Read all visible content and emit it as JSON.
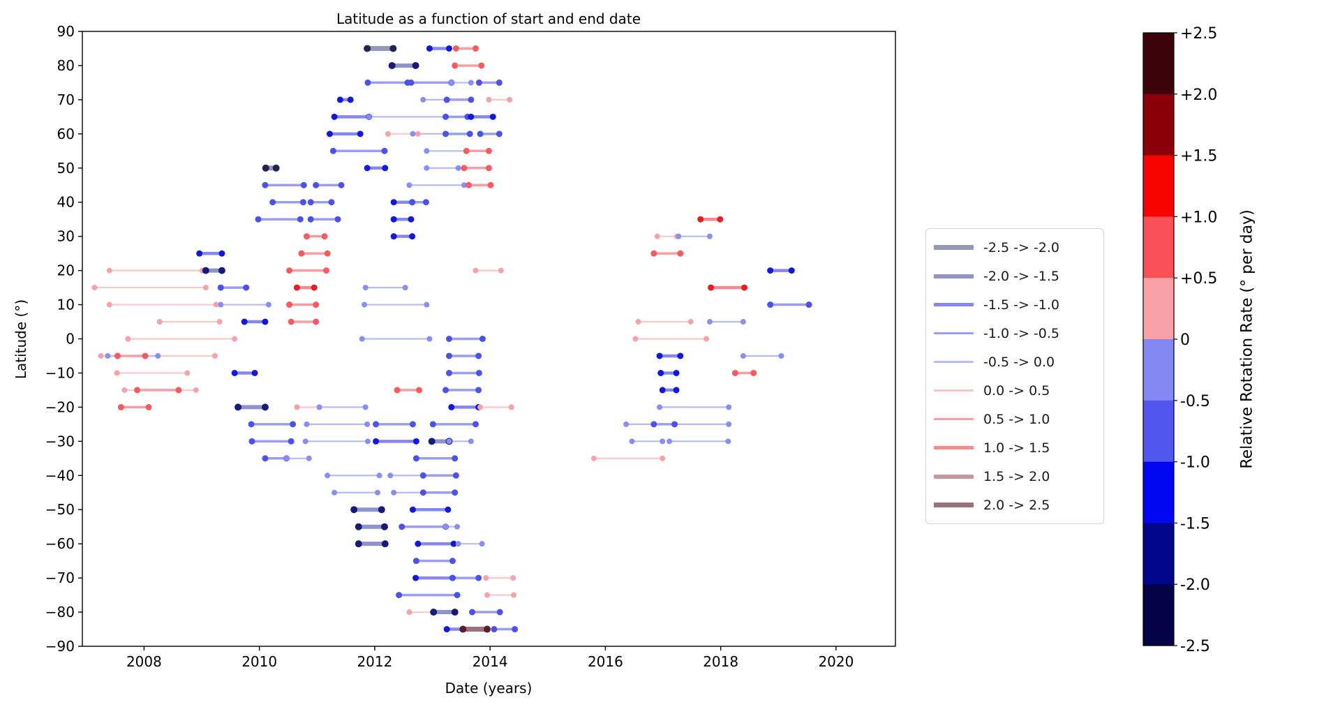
{
  "title": "Latitude as a function of start and end date",
  "xlabel": "Date (years)",
  "ylabel": "Latitude (°)",
  "colorbar": {
    "label": "Relative Rotation Rate (° per day)",
    "tick_labels": [
      "+2.5",
      "+2.0",
      "+1.5",
      "+1.0",
      "+0.5",
      "0",
      "-0.5",
      "-1.0",
      "-1.5",
      "-2.0",
      "-2.5"
    ],
    "colors_top_to_bottom": [
      "#3f040b",
      "#8b0009",
      "#f80400",
      "#f85056",
      "#f9a1a7",
      "#8389f2",
      "#5056ee",
      "#0107f0",
      "#02068c",
      "#030345"
    ]
  },
  "legend": {
    "entries": [
      "-2.5 -> -2.0",
      "-2.0 -> -1.5",
      "-1.5 -> -1.0",
      "-1.0 -> -0.5",
      "-0.5 -> 0.0",
      "0.0 -> 0.5",
      "0.5 -> 1.0",
      "1.0 -> 1.5",
      "1.5 -> 2.0",
      "2.0 -> 2.5"
    ]
  },
  "chart_data": {
    "type": "line",
    "title": "Latitude as a function of start and end date",
    "xlabel": "Date (years)",
    "ylabel": "Latitude (°)",
    "xlim": [
      2006.93,
      2021.03
    ],
    "ylim": [
      -90,
      90
    ],
    "x_ticks": [
      2008,
      2010,
      2012,
      2014,
      2016,
      2018,
      2020
    ],
    "x_tick_labels": [
      "2008",
      "2010",
      "2012",
      "2014",
      "2016",
      "2018",
      "2020"
    ],
    "y_ticks": [
      90,
      80,
      70,
      60,
      50,
      40,
      30,
      20,
      10,
      0,
      -10,
      -20,
      -30,
      -40,
      -50,
      -60,
      -70,
      -80,
      -90
    ],
    "y_tick_labels": [
      "90",
      "80",
      "70",
      "60",
      "50",
      "40",
      "30",
      "20",
      "10",
      "0",
      "−10",
      "−20",
      "−30",
      "−40",
      "−50",
      "−60",
      "−70",
      "−80",
      "−90"
    ],
    "grid": false,
    "legend_position": "outside-right",
    "bins": [
      {
        "label": "-2.5 -> -2.0",
        "range": [
          -2.5,
          -2.0
        ],
        "line": "#9597b8",
        "dot": "#23234f",
        "width": 7,
        "dot_r": 5
      },
      {
        "label": "-2.0 -> -1.5",
        "range": [
          -2.0,
          -1.5
        ],
        "line": "#8f92cc",
        "dot": "#151b78",
        "width": 6,
        "dot_r": 5
      },
      {
        "label": "-1.5 -> -1.0",
        "range": [
          -1.5,
          -1.0
        ],
        "line": "#8487f0",
        "dot": "#1217d8",
        "width": 4.5,
        "dot_r": 4.5
      },
      {
        "label": "-1.0 -> -0.5",
        "range": [
          -1.0,
          -0.5
        ],
        "line": "#999df4",
        "dot": "#4c52e9",
        "width": 3.5,
        "dot_r": 4.5
      },
      {
        "label": "-0.5 -> 0.0",
        "range": [
          -0.5,
          0.0
        ],
        "line": "#b7baf8",
        "dot": "#888ef2",
        "width": 2.2,
        "dot_r": 4
      },
      {
        "label": "0.0 -> 0.5",
        "range": [
          0.0,
          0.5
        ],
        "line": "#fac6c9",
        "dot": "#f7a2a8",
        "width": 2.2,
        "dot_r": 4
      },
      {
        "label": "0.5 -> 1.0",
        "range": [
          0.5,
          1.0
        ],
        "line": "#f99da2",
        "dot": "#f55b61",
        "width": 3.5,
        "dot_r": 4.5
      },
      {
        "label": "1.0 -> 1.5",
        "range": [
          1.0,
          1.5
        ],
        "line": "#f9888d",
        "dot": "#ea1d24",
        "width": 4.5,
        "dot_r": 4.5
      },
      {
        "label": "1.5 -> 2.0",
        "range": [
          1.5,
          2.0
        ],
        "line": "#c9969d",
        "dot": "#8d2e38",
        "width": 6,
        "dot_r": 5
      },
      {
        "label": "2.0 -> 2.5",
        "range": [
          2.0,
          2.5
        ],
        "line": "#9b7179",
        "dot": "#571f27",
        "width": 7,
        "dot_r": 5
      }
    ],
    "segments": [
      [
        85,
        2011.87,
        2012.32,
        0
      ],
      [
        85,
        2012.95,
        2013.29,
        2
      ],
      [
        85,
        2013.41,
        2013.75,
        6
      ],
      [
        80,
        2012.3,
        2012.71,
        1
      ],
      [
        80,
        2013.39,
        2013.85,
        6
      ],
      [
        75,
        2011.88,
        2012.57,
        3
      ],
      [
        75,
        2012.63,
        2013.33,
        3
      ],
      [
        75,
        2013.33,
        2013.67,
        4
      ],
      [
        75,
        2013.81,
        2014.16,
        3
      ],
      [
        70,
        2011.4,
        2011.58,
        2
      ],
      [
        70,
        2012.84,
        2013.25,
        4
      ],
      [
        70,
        2013.25,
        2013.67,
        3
      ],
      [
        70,
        2013.98,
        2014.34,
        5
      ],
      [
        65,
        2011.3,
        2011.9,
        2
      ],
      [
        65,
        2011.9,
        2013.23,
        4
      ],
      [
        65,
        2013.23,
        2013.61,
        3
      ],
      [
        65,
        2013.67,
        2014.05,
        2
      ],
      [
        60,
        2011.22,
        2011.75,
        2
      ],
      [
        60,
        2012.23,
        2012.75,
        5
      ],
      [
        60,
        2012.66,
        2013.23,
        4
      ],
      [
        60,
        2013.23,
        2013.65,
        3
      ],
      [
        60,
        2013.83,
        2014.16,
        3
      ],
      [
        55,
        2011.28,
        2012.17,
        3
      ],
      [
        55,
        2012.9,
        2013.59,
        4
      ],
      [
        55,
        2013.59,
        2013.98,
        6
      ],
      [
        50,
        2010.11,
        2010.29,
        0
      ],
      [
        50,
        2011.87,
        2012.18,
        2
      ],
      [
        50,
        2012.9,
        2013.45,
        4
      ],
      [
        50,
        2013.55,
        2013.98,
        6
      ],
      [
        45,
        2010.1,
        2010.77,
        3
      ],
      [
        45,
        2010.98,
        2011.42,
        3
      ],
      [
        45,
        2012.6,
        2013.55,
        4
      ],
      [
        45,
        2013.63,
        2014.01,
        6
      ],
      [
        40,
        2010.23,
        2010.76,
        3
      ],
      [
        40,
        2010.89,
        2011.25,
        3
      ],
      [
        40,
        2012.33,
        2012.65,
        2
      ],
      [
        40,
        2012.65,
        2012.89,
        3
      ],
      [
        35,
        2009.98,
        2010.71,
        3
      ],
      [
        35,
        2010.89,
        2011.36,
        3
      ],
      [
        35,
        2012.33,
        2012.63,
        2
      ],
      [
        35,
        2017.65,
        2017.99,
        7
      ],
      [
        30,
        2010.82,
        2011.13,
        6
      ],
      [
        30,
        2012.33,
        2012.65,
        2
      ],
      [
        30,
        2016.9,
        2017.24,
        5
      ],
      [
        30,
        2017.27,
        2017.81,
        4
      ],
      [
        25,
        2008.96,
        2009.35,
        2
      ],
      [
        25,
        2010.73,
        2011.18,
        6
      ],
      [
        25,
        2016.84,
        2017.3,
        6
      ],
      [
        20,
        2007.4,
        2009.01,
        5
      ],
      [
        20,
        2009.07,
        2009.35,
        1
      ],
      [
        20,
        2010.52,
        2011.16,
        6
      ],
      [
        20,
        2013.75,
        2014.19,
        5
      ],
      [
        20,
        2018.86,
        2019.23,
        2
      ],
      [
        15,
        2007.14,
        2009.07,
        5
      ],
      [
        15,
        2009.33,
        2009.77,
        3
      ],
      [
        15,
        2010.65,
        2010.95,
        7
      ],
      [
        15,
        2011.84,
        2012.53,
        4
      ],
      [
        15,
        2017.83,
        2018.41,
        7
      ],
      [
        10,
        2007.4,
        2009.25,
        5
      ],
      [
        10,
        2009.33,
        2010.16,
        4
      ],
      [
        10,
        2010.52,
        2010.98,
        6
      ],
      [
        10,
        2011.82,
        2012.9,
        4
      ],
      [
        10,
        2018.86,
        2019.53,
        3
      ],
      [
        5,
        2008.27,
        2009.31,
        5
      ],
      [
        5,
        2009.74,
        2010.1,
        2
      ],
      [
        5,
        2010.55,
        2010.98,
        6
      ],
      [
        5,
        2016.57,
        2017.48,
        5
      ],
      [
        5,
        2017.81,
        2018.39,
        4
      ],
      [
        0,
        2007.72,
        2009.57,
        5
      ],
      [
        0,
        2011.78,
        2012.95,
        4
      ],
      [
        0,
        2013.29,
        2013.87,
        3
      ],
      [
        0,
        2016.52,
        2017.75,
        5
      ],
      [
        -5,
        2007.25,
        2009.23,
        5
      ],
      [
        -5,
        2007.37,
        2008.24,
        4
      ],
      [
        -5,
        2007.54,
        2008.02,
        6
      ],
      [
        -5,
        2013.29,
        2013.8,
        3
      ],
      [
        -5,
        2016.94,
        2017.3,
        2
      ],
      [
        -5,
        2018.39,
        2019.05,
        4
      ],
      [
        -10,
        2007.53,
        2008.75,
        5
      ],
      [
        -10,
        2009.57,
        2009.92,
        2
      ],
      [
        -10,
        2013.29,
        2013.81,
        3
      ],
      [
        -10,
        2016.96,
        2017.23,
        2
      ],
      [
        -10,
        2018.25,
        2018.57,
        6
      ],
      [
        -15,
        2007.66,
        2008.9,
        5
      ],
      [
        -15,
        2007.88,
        2008.6,
        6
      ],
      [
        -15,
        2012.39,
        2012.77,
        6
      ],
      [
        -15,
        2013.23,
        2013.8,
        3
      ],
      [
        -15,
        2016.99,
        2017.23,
        2
      ],
      [
        -20,
        2007.6,
        2008.08,
        6
      ],
      [
        -20,
        2009.63,
        2010.1,
        1
      ],
      [
        -20,
        2010.65,
        2011.04,
        5
      ],
      [
        -20,
        2011.04,
        2011.84,
        4
      ],
      [
        -20,
        2013.33,
        2013.8,
        2
      ],
      [
        -20,
        2013.83,
        2014.37,
        5
      ],
      [
        -20,
        2016.94,
        2018.14,
        4
      ],
      [
        -25,
        2009.86,
        2010.58,
        3
      ],
      [
        -25,
        2010.82,
        2011.87,
        4
      ],
      [
        -25,
        2012.02,
        2012.66,
        3
      ],
      [
        -25,
        2013.01,
        2013.75,
        3
      ],
      [
        -25,
        2016.36,
        2018.14,
        4
      ],
      [
        -25,
        2016.84,
        2017.2,
        3
      ],
      [
        -30,
        2009.87,
        2010.55,
        3
      ],
      [
        -30,
        2010.8,
        2011.88,
        4
      ],
      [
        -30,
        2012.02,
        2012.72,
        2
      ],
      [
        -30,
        2012.99,
        2013.29,
        1
      ],
      [
        -30,
        2013.29,
        2013.67,
        4
      ],
      [
        -30,
        2016.46,
        2016.99,
        4
      ],
      [
        -30,
        2017.11,
        2018.13,
        4
      ],
      [
        -35,
        2010.1,
        2010.47,
        3
      ],
      [
        -35,
        2010.47,
        2010.86,
        4
      ],
      [
        -35,
        2012.72,
        2013.39,
        3
      ],
      [
        -35,
        2015.8,
        2016.99,
        5
      ],
      [
        -40,
        2011.18,
        2012.08,
        4
      ],
      [
        -40,
        2012.27,
        2012.84,
        4
      ],
      [
        -40,
        2012.84,
        2013.41,
        3
      ],
      [
        -45,
        2011.3,
        2012.05,
        4
      ],
      [
        -45,
        2012.33,
        2012.84,
        4
      ],
      [
        -45,
        2012.84,
        2013.39,
        3
      ],
      [
        -50,
        2011.64,
        2012.12,
        1
      ],
      [
        -50,
        2012.66,
        2013.27,
        2
      ],
      [
        -55,
        2011.72,
        2012.17,
        1
      ],
      [
        -55,
        2012.47,
        2013.23,
        3
      ],
      [
        -55,
        2013.23,
        2013.43,
        4
      ],
      [
        -60,
        2011.72,
        2012.18,
        1
      ],
      [
        -60,
        2012.75,
        2013.37,
        2
      ],
      [
        -60,
        2013.45,
        2013.86,
        4
      ],
      [
        -65,
        2012.72,
        2013.35,
        3
      ],
      [
        -70,
        2012.71,
        2013.35,
        2
      ],
      [
        -70,
        2013.35,
        2013.8,
        3
      ],
      [
        -70,
        2013.93,
        2014.4,
        5
      ],
      [
        -75,
        2012.42,
        2013.43,
        3
      ],
      [
        -75,
        2013.95,
        2014.41,
        5
      ],
      [
        -80,
        2012.6,
        2013.02,
        5
      ],
      [
        -80,
        2013.02,
        2013.39,
        1
      ],
      [
        -80,
        2013.69,
        2014.17,
        3
      ],
      [
        -85,
        2013.25,
        2013.53,
        2
      ],
      [
        -85,
        2013.53,
        2013.95,
        9
      ],
      [
        -85,
        2014.07,
        2014.43,
        3
      ]
    ]
  }
}
